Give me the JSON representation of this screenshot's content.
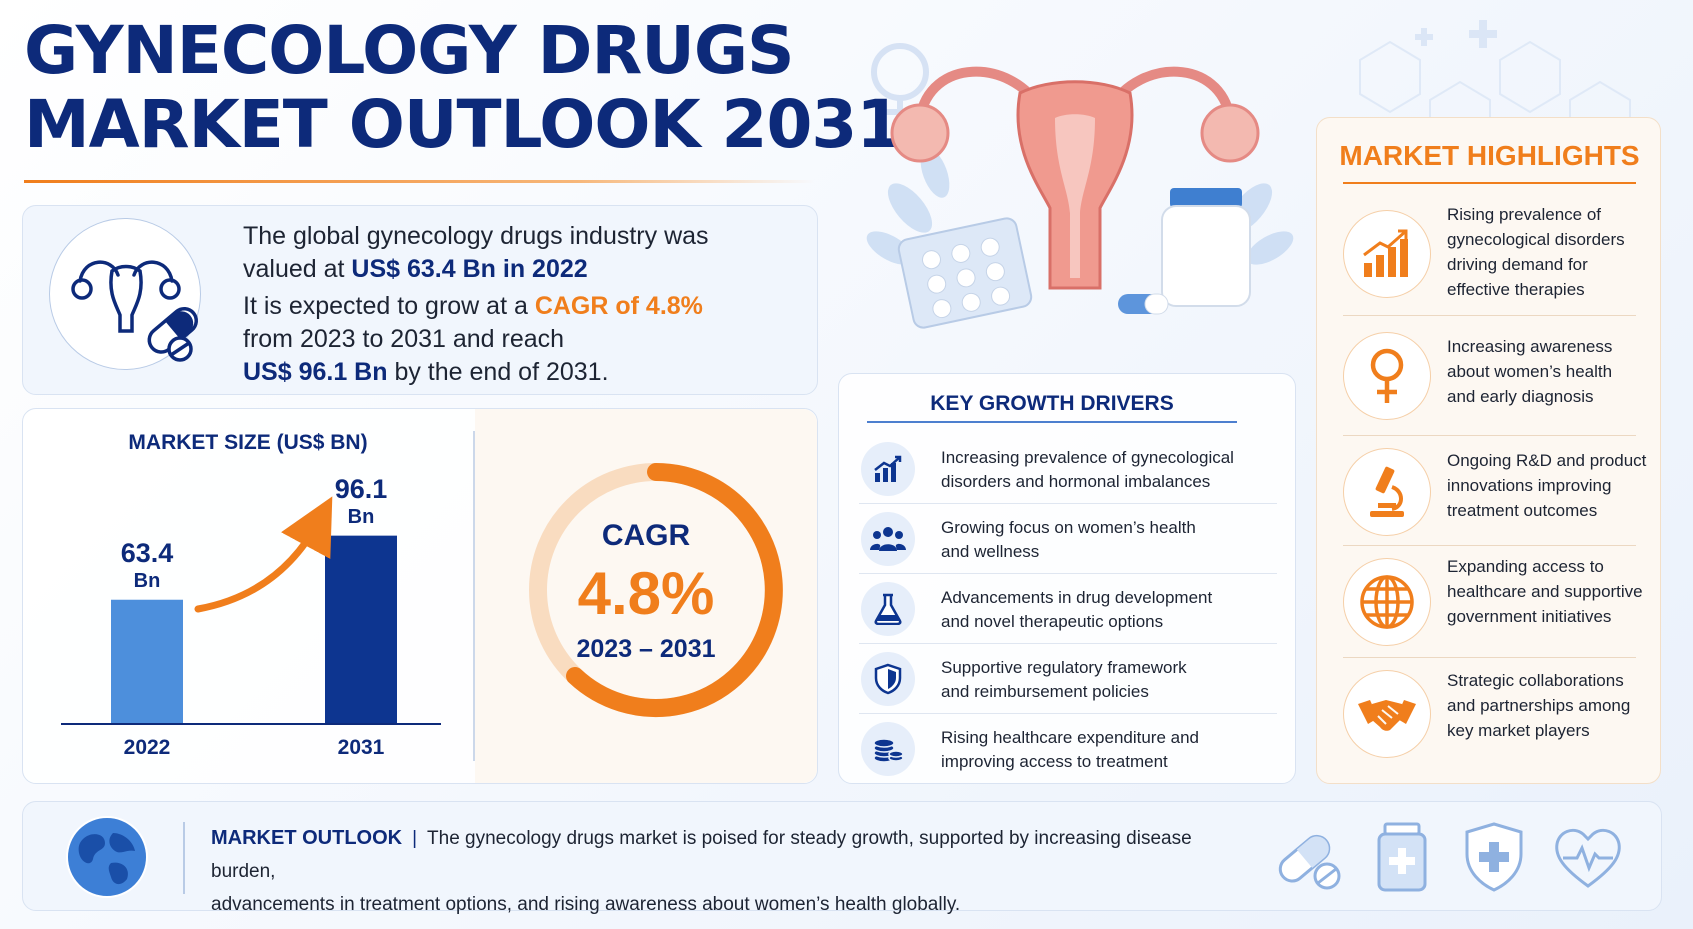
{
  "title": {
    "line1": "GYNECOLOGY DRUGS",
    "line2": "MARKET OUTLOOK 2031"
  },
  "summary": {
    "l1": "The global gynecology drugs industry was",
    "l2a": "valued at ",
    "l2b": "US$ 63.4 Bn in 2022",
    "l3a": "It is expected to grow at a ",
    "l3b": "CAGR of 4.8%",
    "l4": "from 2023 to 2031 and reach",
    "l5a": "US$ 96.1 Bn",
    "l5b": " by the end of 2031."
  },
  "chart_data": {
    "type": "bar",
    "title": "MARKET SIZE (US$ BN)",
    "categories": [
      "2022",
      "2031"
    ],
    "values": [
      63.4,
      96.1
    ],
    "value_unit": "Bn",
    "value_labels": [
      "63.4",
      "96.1"
    ],
    "colors": [
      "#4d8fdc",
      "#0d3590"
    ]
  },
  "cagr": {
    "label": "CAGR",
    "value": "4.8%",
    "period": "2023 – 2031"
  },
  "drivers": {
    "title": "KEY GROWTH DRIVERS",
    "items": [
      {
        "icon": "bar-chart-icon",
        "l1": "Increasing prevalence of gynecological",
        "l2": "disorders and hormonal imbalances"
      },
      {
        "icon": "people-icon",
        "l1": "Growing focus on women’s health",
        "l2": "and wellness"
      },
      {
        "icon": "flask-icon",
        "l1": "Advancements in drug development",
        "l2": "and novel therapeutic options"
      },
      {
        "icon": "shield-icon",
        "l1": "Supportive regulatory framework",
        "l2": "and reimbursement policies"
      },
      {
        "icon": "coins-icon",
        "l1": "Rising healthcare expenditure and",
        "l2": "improving access to treatment"
      }
    ]
  },
  "highlights": {
    "title": "MARKET HIGHLIGHTS",
    "items": [
      {
        "icon": "growth-chart-icon",
        "lines": [
          "Rising prevalence of",
          "gynecological disorders",
          "driving demand for",
          "effective therapies"
        ]
      },
      {
        "icon": "female-symbol-icon",
        "lines": [
          "Increasing awareness",
          "about women’s health",
          "and early diagnosis"
        ]
      },
      {
        "icon": "microscope-icon",
        "lines": [
          "Ongoing R&D and product",
          "innovations improving",
          "treatment outcomes"
        ]
      },
      {
        "icon": "globe-icon",
        "lines": [
          "Expanding access to",
          "healthcare and supportive",
          "government initiatives"
        ]
      },
      {
        "icon": "handshake-icon",
        "lines": [
          "Strategic collaborations",
          "and partnerships among",
          "key market players"
        ]
      }
    ]
  },
  "outlook": {
    "label": "MARKET OUTLOOK",
    "l1": "The gynecology drugs market is poised for steady growth, supported by increasing disease burden,",
    "l2": "advancements in treatment options, and rising awareness about women’s health globally.",
    "icons": [
      "capsule-icon",
      "medicine-bottle-icon",
      "medical-shield-icon",
      "heart-pulse-icon"
    ]
  },
  "colors": {
    "navy": "#0d2a7a",
    "orange": "#f07e1c",
    "light_blue": "#4d8fdc",
    "dark_blue": "#0d3590"
  }
}
